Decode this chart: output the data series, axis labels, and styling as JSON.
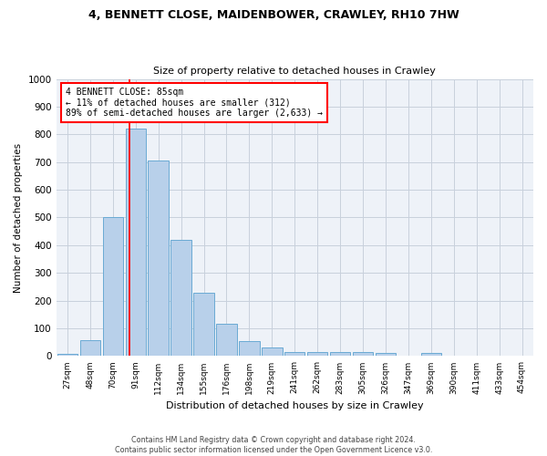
{
  "title1": "4, BENNETT CLOSE, MAIDENBOWER, CRAWLEY, RH10 7HW",
  "title2": "Size of property relative to detached houses in Crawley",
  "xlabel": "Distribution of detached houses by size in Crawley",
  "ylabel": "Number of detached properties",
  "categories": [
    "27sqm",
    "48sqm",
    "70sqm",
    "91sqm",
    "112sqm",
    "134sqm",
    "155sqm",
    "176sqm",
    "198sqm",
    "219sqm",
    "241sqm",
    "262sqm",
    "283sqm",
    "305sqm",
    "326sqm",
    "347sqm",
    "369sqm",
    "390sqm",
    "411sqm",
    "433sqm",
    "454sqm"
  ],
  "values": [
    8,
    57,
    500,
    820,
    707,
    418,
    230,
    116,
    54,
    32,
    15,
    14,
    13,
    15,
    10,
    0,
    10,
    0,
    0,
    0,
    0
  ],
  "bar_color": "#b8d0ea",
  "bar_edge_color": "#6aaad4",
  "annotation_title": "4 BENNETT CLOSE: 85sqm",
  "annotation_line1": "← 11% of detached houses are smaller (312)",
  "annotation_line2": "89% of semi-detached houses are larger (2,633) →",
  "footer1": "Contains HM Land Registry data © Crown copyright and database right 2024.",
  "footer2": "Contains public sector information licensed under the Open Government Licence v3.0.",
  "ylim": [
    0,
    1000
  ],
  "yticks": [
    0,
    100,
    200,
    300,
    400,
    500,
    600,
    700,
    800,
    900,
    1000
  ],
  "bg_color": "#eef2f8",
  "grid_color": "#c8d0dc"
}
